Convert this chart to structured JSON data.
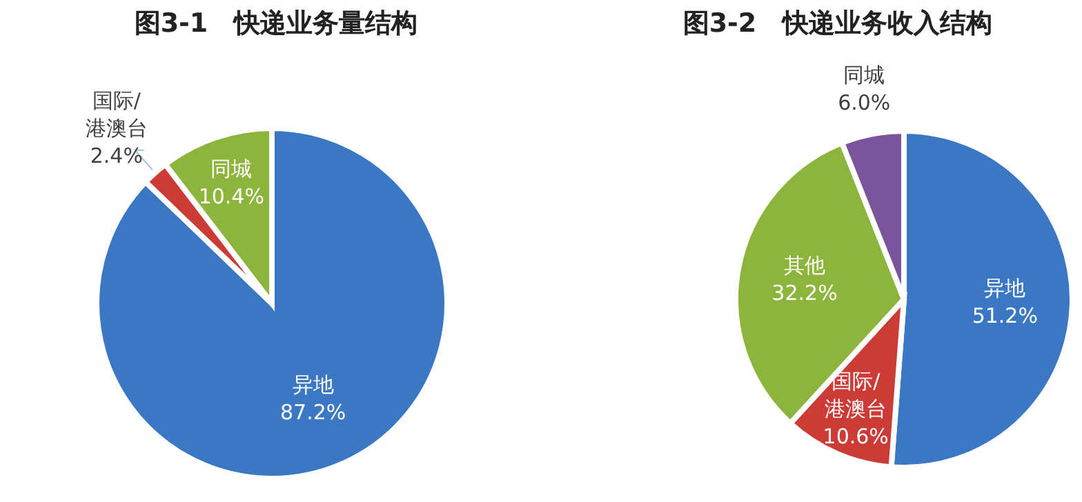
{
  "chart_data": [
    {
      "type": "pie",
      "title": "图3-1　快递业务量结构",
      "categories": [
        "异地",
        "国际/港澳台",
        "同城"
      ],
      "values": [
        87.2,
        2.4,
        10.4
      ],
      "colors": [
        "#3a78c4",
        "#cc3b36",
        "#8db53c"
      ],
      "value_labels": [
        "87.2%",
        "2.4%",
        "10.4%"
      ]
    },
    {
      "type": "pie",
      "title": "图3-2　快递业务收入结构",
      "categories": [
        "异地",
        "国际/港澳台",
        "其他",
        "同城"
      ],
      "values": [
        51.2,
        10.6,
        32.2,
        6.0
      ],
      "colors": [
        "#3a78c4",
        "#cc3b36",
        "#8db53c",
        "#7a559c"
      ],
      "value_labels": [
        "51.2%",
        "10.6%",
        "32.2%",
        "6.0%"
      ]
    }
  ]
}
